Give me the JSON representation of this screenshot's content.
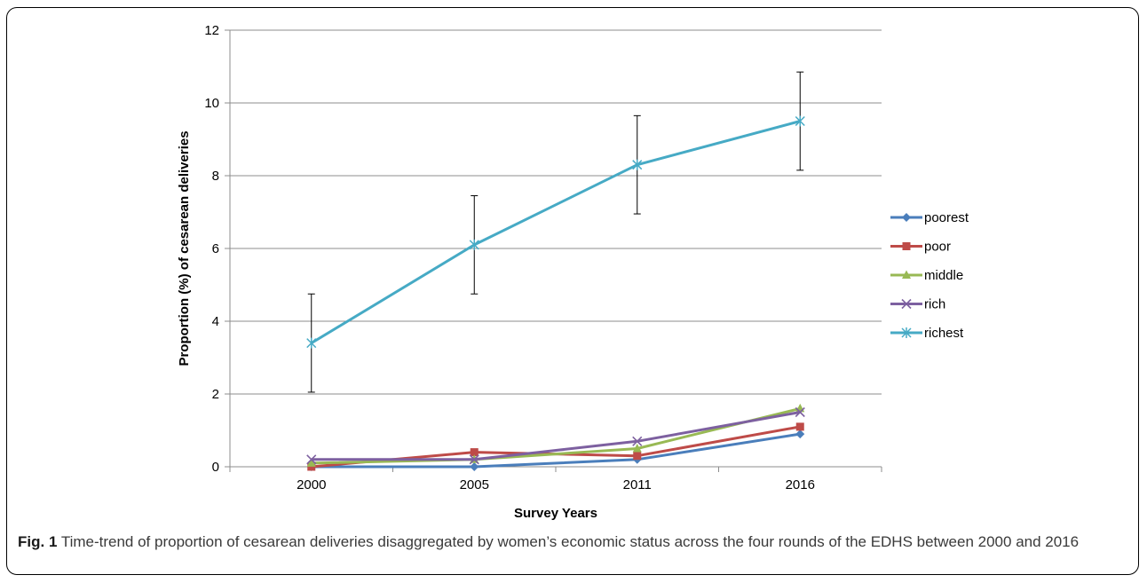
{
  "chart_data": {
    "type": "line",
    "categories": [
      "2000",
      "2005",
      "2011",
      "2016"
    ],
    "xlabel": "Survey Years",
    "ylabel": "Proportion (%) of cesarean deliveries",
    "ylim": [
      0,
      12
    ],
    "yticks": [
      0,
      2,
      4,
      6,
      8,
      10,
      12
    ],
    "grid": "horizontal",
    "legend_position": "right",
    "series": [
      {
        "name": "poorest",
        "values": [
          0.0,
          0.0,
          0.2,
          0.9
        ],
        "color": "#4a7ebb",
        "marker": "diamond"
      },
      {
        "name": "poor",
        "values": [
          0.0,
          0.4,
          0.3,
          1.1
        ],
        "color": "#be4b48",
        "marker": "square"
      },
      {
        "name": "middle",
        "values": [
          0.1,
          0.2,
          0.5,
          1.6
        ],
        "color": "#98b954",
        "marker": "triangle"
      },
      {
        "name": "rich",
        "values": [
          0.2,
          0.2,
          0.7,
          1.5
        ],
        "color": "#7d60a0",
        "marker": "x"
      },
      {
        "name": "richest",
        "values": [
          3.4,
          6.1,
          8.3,
          9.5
        ],
        "color": "#46aac5",
        "marker": "star",
        "error_low": [
          2.05,
          4.75,
          6.95,
          8.15
        ],
        "error_high": [
          4.75,
          7.45,
          9.65,
          10.85
        ]
      }
    ]
  },
  "caption": {
    "label": "Fig. 1",
    "text": " Time-trend of proportion of cesarean deliveries disaggregated by women’s economic status across the four rounds of the EDHS between 2000 and 2016"
  }
}
